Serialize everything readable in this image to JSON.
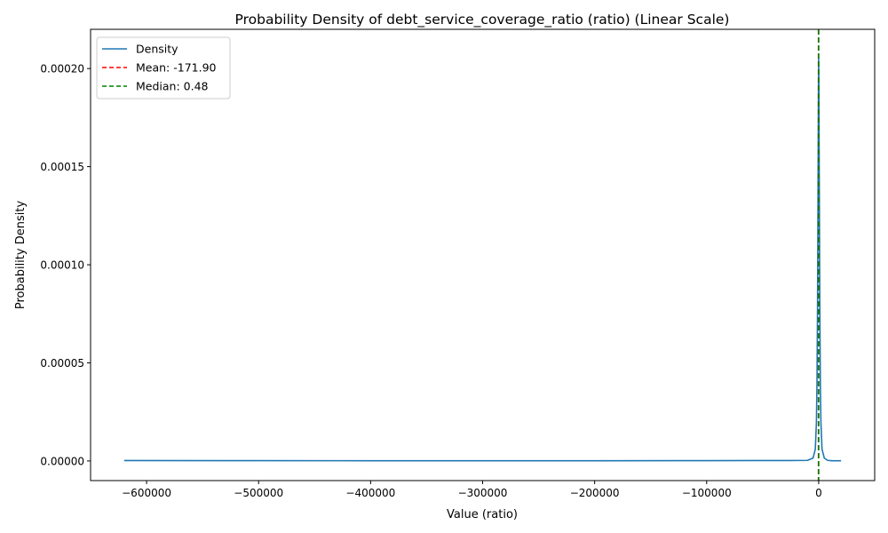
{
  "chart_data": {
    "type": "line",
    "title": "Probability Density of debt_service_coverage_ratio (ratio) (Linear Scale)",
    "xlabel": "Value (ratio)",
    "ylabel": "Probability Density",
    "xlim": [
      -650000,
      50000
    ],
    "ylim": [
      -1e-05,
      0.00022
    ],
    "xticks": [
      -600000,
      -500000,
      -400000,
      -300000,
      -200000,
      -100000,
      0
    ],
    "xtick_labels": [
      "−600000",
      "−500000",
      "−400000",
      "−300000",
      "−200000",
      "−100000",
      "0"
    ],
    "yticks": [
      0,
      5e-05,
      0.0001,
      0.00015,
      0.0002
    ],
    "ytick_labels": [
      "0.00000",
      "0.00005",
      "0.00010",
      "0.00015",
      "0.00020"
    ],
    "grid": false,
    "legend_position": "top-left",
    "series": [
      {
        "name": "Density",
        "color": "#1f77b4",
        "style": "solid",
        "x": [
          -620000,
          -500000,
          -400000,
          -300000,
          -200000,
          -100000,
          -60000,
          -30000,
          -10000,
          -5000,
          -3000,
          -2000,
          -1500,
          -1000,
          -700,
          -400,
          -200,
          0,
          200,
          400,
          700,
          1000,
          1500,
          2000,
          3000,
          5000,
          8000,
          12000,
          20000
        ],
        "y": [
          2e-07,
          1.5e-07,
          1.2e-07,
          1.2e-07,
          1.2e-07,
          1.5e-07,
          2e-07,
          2e-07,
          3e-07,
          1.5e-06,
          6e-06,
          2e-05,
          4e-05,
          8e-05,
          0.00012,
          0.00016,
          0.00019,
          0.000205,
          0.00019,
          0.00016,
          0.00012,
          8e-05,
          4e-05,
          2e-05,
          6e-06,
          1.5e-06,
          3e-07,
          1e-07,
          1e-07
        ]
      }
    ],
    "vlines": [
      {
        "name": "Mean: -171.90",
        "value": -171.9,
        "color": "#ff0000",
        "style": "dashed"
      },
      {
        "name": "Median: 0.48",
        "value": 0.48,
        "color": "#008000",
        "style": "dashed"
      }
    ]
  }
}
